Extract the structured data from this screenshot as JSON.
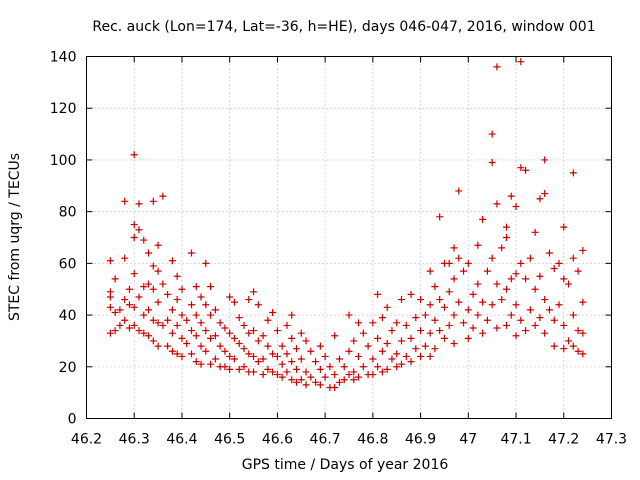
{
  "chart_data": {
    "type": "scatter",
    "title": "Rec. auck (Lon=174, Lat=-36, h=HE), days 046-047, 2016, window 001",
    "xlabel": "GPS time / Days of year 2016",
    "ylabel": "STEC from uqrg / TECUs",
    "xlim": [
      46.2,
      47.3
    ],
    "ylim": [
      0,
      140
    ],
    "xticks": [
      "46.2",
      "46.3",
      "46.4",
      "46.5",
      "46.6",
      "46.7",
      "46.8",
      "46.9",
      "47",
      "47.1",
      "47.2",
      "47.3"
    ],
    "xtick_values": [
      46.2,
      46.3,
      46.4,
      46.5,
      46.6,
      46.7,
      46.8,
      46.9,
      47.0,
      47.1,
      47.2,
      47.3
    ],
    "yticks": [
      "0",
      "20",
      "40",
      "60",
      "80",
      "100",
      "120",
      "140"
    ],
    "ytick_values": [
      0,
      20,
      40,
      60,
      80,
      100,
      120,
      140
    ],
    "grid": true,
    "marker": "+",
    "series": [
      {
        "name": "STEC",
        "color": "#cc0000",
        "points": [
          [
            46.25,
            61
          ],
          [
            46.25,
            49
          ],
          [
            46.25,
            47
          ],
          [
            46.25,
            43
          ],
          [
            46.25,
            33
          ],
          [
            46.26,
            34
          ],
          [
            46.26,
            41
          ],
          [
            46.26,
            54
          ],
          [
            46.27,
            36
          ],
          [
            46.27,
            42
          ],
          [
            46.28,
            84
          ],
          [
            46.28,
            62
          ],
          [
            46.28,
            46
          ],
          [
            46.28,
            38
          ],
          [
            46.29,
            44
          ],
          [
            46.29,
            35
          ],
          [
            46.29,
            50
          ],
          [
            46.3,
            102
          ],
          [
            46.3,
            75
          ],
          [
            46.3,
            70
          ],
          [
            46.3,
            56
          ],
          [
            46.3,
            43
          ],
          [
            46.3,
            36
          ],
          [
            46.31,
            83
          ],
          [
            46.31,
            73
          ],
          [
            46.31,
            47
          ],
          [
            46.31,
            34
          ],
          [
            46.32,
            69
          ],
          [
            46.32,
            51
          ],
          [
            46.32,
            40
          ],
          [
            46.32,
            33
          ],
          [
            46.33,
            64
          ],
          [
            46.33,
            52
          ],
          [
            46.33,
            42
          ],
          [
            46.33,
            32
          ],
          [
            46.34,
            84
          ],
          [
            46.34,
            59
          ],
          [
            46.34,
            50
          ],
          [
            46.34,
            38
          ],
          [
            46.34,
            30
          ],
          [
            46.35,
            67
          ],
          [
            46.35,
            57
          ],
          [
            46.35,
            45
          ],
          [
            46.35,
            37
          ],
          [
            46.35,
            28
          ],
          [
            46.36,
            86
          ],
          [
            46.36,
            52
          ],
          [
            46.36,
            36
          ],
          [
            46.37,
            48
          ],
          [
            46.37,
            38
          ],
          [
            46.37,
            28
          ],
          [
            46.38,
            61
          ],
          [
            46.38,
            42
          ],
          [
            46.38,
            33
          ],
          [
            46.38,
            26
          ],
          [
            46.39,
            55
          ],
          [
            46.39,
            46
          ],
          [
            46.39,
            36
          ],
          [
            46.39,
            25
          ],
          [
            46.4,
            50
          ],
          [
            46.4,
            40
          ],
          [
            46.4,
            31
          ],
          [
            46.4,
            24
          ],
          [
            46.41,
            38
          ],
          [
            46.41,
            29
          ],
          [
            46.42,
            64
          ],
          [
            46.42,
            44
          ],
          [
            46.42,
            34
          ],
          [
            46.42,
            25
          ],
          [
            46.43,
            51
          ],
          [
            46.43,
            40
          ],
          [
            46.43,
            32
          ],
          [
            46.43,
            22
          ],
          [
            46.44,
            47
          ],
          [
            46.44,
            37
          ],
          [
            46.44,
            28
          ],
          [
            46.44,
            21
          ],
          [
            46.45,
            60
          ],
          [
            46.45,
            44
          ],
          [
            46.45,
            34
          ],
          [
            46.45,
            26
          ],
          [
            46.46,
            51
          ],
          [
            46.46,
            40
          ],
          [
            46.46,
            31
          ],
          [
            46.46,
            21
          ],
          [
            46.47,
            42
          ],
          [
            46.47,
            32
          ],
          [
            46.47,
            23
          ],
          [
            46.48,
            37
          ],
          [
            46.48,
            28
          ],
          [
            46.48,
            20
          ],
          [
            46.49,
            35
          ],
          [
            46.49,
            26
          ],
          [
            46.49,
            20
          ],
          [
            46.5,
            47
          ],
          [
            46.5,
            33
          ],
          [
            46.5,
            24
          ],
          [
            46.5,
            19
          ],
          [
            46.51,
            45
          ],
          [
            46.51,
            31
          ],
          [
            46.51,
            23
          ],
          [
            46.52,
            39
          ],
          [
            46.52,
            29
          ],
          [
            46.52,
            19
          ],
          [
            46.53,
            36
          ],
          [
            46.53,
            27
          ],
          [
            46.53,
            20
          ],
          [
            46.54,
            46
          ],
          [
            46.54,
            33
          ],
          [
            46.54,
            25
          ],
          [
            46.54,
            18
          ],
          [
            46.55,
            49
          ],
          [
            46.55,
            34
          ],
          [
            46.55,
            24
          ],
          [
            46.55,
            18
          ],
          [
            46.56,
            44
          ],
          [
            46.56,
            30
          ],
          [
            46.56,
            22
          ],
          [
            46.57,
            32
          ],
          [
            46.57,
            23
          ],
          [
            46.57,
            17
          ],
          [
            46.58,
            38
          ],
          [
            46.58,
            28
          ],
          [
            46.58,
            19
          ],
          [
            46.59,
            41
          ],
          [
            46.59,
            25
          ],
          [
            46.59,
            18
          ],
          [
            46.6,
            34
          ],
          [
            46.6,
            24
          ],
          [
            46.6,
            17
          ],
          [
            46.61,
            28
          ],
          [
            46.61,
            21
          ],
          [
            46.61,
            16
          ],
          [
            46.62,
            36
          ],
          [
            46.62,
            25
          ],
          [
            46.62,
            18
          ],
          [
            46.63,
            40
          ],
          [
            46.63,
            31
          ],
          [
            46.63,
            22
          ],
          [
            46.63,
            15
          ],
          [
            46.64,
            27
          ],
          [
            46.64,
            19
          ],
          [
            46.64,
            14
          ],
          [
            46.65,
            33
          ],
          [
            46.65,
            23
          ],
          [
            46.65,
            15
          ],
          [
            46.66,
            30
          ],
          [
            46.66,
            18
          ],
          [
            46.66,
            13
          ],
          [
            46.67,
            26
          ],
          [
            46.67,
            16
          ],
          [
            46.68,
            22
          ],
          [
            46.68,
            14
          ],
          [
            46.69,
            28
          ],
          [
            46.69,
            19
          ],
          [
            46.69,
            13
          ],
          [
            46.7,
            24
          ],
          [
            46.7,
            16
          ],
          [
            46.71,
            20
          ],
          [
            46.71,
            12
          ],
          [
            46.72,
            32
          ],
          [
            46.72,
            17
          ],
          [
            46.72,
            12
          ],
          [
            46.73,
            23
          ],
          [
            46.73,
            14
          ],
          [
            46.74,
            20
          ],
          [
            46.74,
            15
          ],
          [
            46.75,
            40
          ],
          [
            46.75,
            26
          ],
          [
            46.75,
            17
          ],
          [
            46.76,
            30
          ],
          [
            46.76,
            18
          ],
          [
            46.76,
            15
          ],
          [
            46.77,
            37
          ],
          [
            46.77,
            24
          ],
          [
            46.77,
            16
          ],
          [
            46.78,
            33
          ],
          [
            46.78,
            20
          ],
          [
            46.79,
            28
          ],
          [
            46.79,
            17
          ],
          [
            46.8,
            37
          ],
          [
            46.8,
            23
          ],
          [
            46.8,
            17
          ],
          [
            46.81,
            48
          ],
          [
            46.81,
            31
          ],
          [
            46.81,
            20
          ],
          [
            46.82,
            39
          ],
          [
            46.82,
            26
          ],
          [
            46.82,
            18
          ],
          [
            46.83,
            43
          ],
          [
            46.83,
            29
          ],
          [
            46.83,
            19
          ],
          [
            46.84,
            34
          ],
          [
            46.84,
            23
          ],
          [
            46.85,
            37
          ],
          [
            46.85,
            25
          ],
          [
            46.85,
            20
          ],
          [
            46.86,
            46
          ],
          [
            46.86,
            30
          ],
          [
            46.86,
            21
          ],
          [
            46.87,
            36
          ],
          [
            46.87,
            24
          ],
          [
            46.88,
            48
          ],
          [
            46.88,
            31
          ],
          [
            46.88,
            22
          ],
          [
            46.89,
            39
          ],
          [
            46.89,
            27
          ],
          [
            46.9,
            46
          ],
          [
            46.9,
            34
          ],
          [
            46.9,
            24
          ],
          [
            46.91,
            40
          ],
          [
            46.91,
            28
          ],
          [
            46.92,
            57
          ],
          [
            46.92,
            44
          ],
          [
            46.92,
            33
          ],
          [
            46.92,
            24
          ],
          [
            46.93,
            51
          ],
          [
            46.93,
            38
          ],
          [
            46.93,
            27
          ],
          [
            46.94,
            78
          ],
          [
            46.94,
            46
          ],
          [
            46.94,
            34
          ],
          [
            46.95,
            60
          ],
          [
            46.95,
            43
          ],
          [
            46.95,
            31
          ],
          [
            46.96,
            60
          ],
          [
            46.96,
            49
          ],
          [
            46.96,
            36
          ],
          [
            46.97,
            66
          ],
          [
            46.97,
            54
          ],
          [
            46.97,
            40
          ],
          [
            46.97,
            29
          ],
          [
            46.98,
            88
          ],
          [
            46.98,
            62
          ],
          [
            46.98,
            45
          ],
          [
            46.99,
            57
          ],
          [
            46.99,
            37
          ],
          [
            47.0,
            60
          ],
          [
            47.0,
            42
          ],
          [
            47.0,
            31
          ],
          [
            47.01,
            48
          ],
          [
            47.01,
            35
          ],
          [
            47.02,
            67
          ],
          [
            47.02,
            52
          ],
          [
            47.02,
            40
          ],
          [
            47.03,
            77
          ],
          [
            47.03,
            45
          ],
          [
            47.03,
            33
          ],
          [
            47.04,
            57
          ],
          [
            47.04,
            38
          ],
          [
            47.05,
            110
          ],
          [
            47.05,
            99
          ],
          [
            47.05,
            62
          ],
          [
            47.05,
            44
          ],
          [
            47.06,
            136
          ],
          [
            47.06,
            83
          ],
          [
            47.06,
            52
          ],
          [
            47.06,
            35
          ],
          [
            47.07,
            66
          ],
          [
            47.07,
            46
          ],
          [
            47.08,
            74
          ],
          [
            47.08,
            70
          ],
          [
            47.08,
            50
          ],
          [
            47.08,
            36
          ],
          [
            47.09,
            86
          ],
          [
            47.09,
            54
          ],
          [
            47.09,
            40
          ],
          [
            47.1,
            82
          ],
          [
            47.1,
            56
          ],
          [
            47.1,
            44
          ],
          [
            47.1,
            32
          ],
          [
            47.11,
            138
          ],
          [
            47.11,
            97
          ],
          [
            47.11,
            60
          ],
          [
            47.11,
            38
          ],
          [
            47.12,
            96
          ],
          [
            47.12,
            54
          ],
          [
            47.12,
            34
          ],
          [
            47.13,
            62
          ],
          [
            47.13,
            42
          ],
          [
            47.14,
            72
          ],
          [
            47.14,
            50
          ],
          [
            47.14,
            36
          ],
          [
            47.15,
            85
          ],
          [
            47.15,
            55
          ],
          [
            47.15,
            39
          ],
          [
            47.16,
            87
          ],
          [
            47.16,
            100
          ],
          [
            47.16,
            46
          ],
          [
            47.16,
            33
          ],
          [
            47.17,
            64
          ],
          [
            47.17,
            42
          ],
          [
            47.18,
            58
          ],
          [
            47.18,
            38
          ],
          [
            47.18,
            28
          ],
          [
            47.19,
            60
          ],
          [
            47.19,
            44
          ],
          [
            47.2,
            74
          ],
          [
            47.2,
            54
          ],
          [
            47.2,
            36
          ],
          [
            47.2,
            27
          ],
          [
            47.21,
            52
          ],
          [
            47.21,
            30
          ],
          [
            47.22,
            95
          ],
          [
            47.22,
            62
          ],
          [
            47.22,
            40
          ],
          [
            47.22,
            28
          ],
          [
            47.23,
            57
          ],
          [
            47.23,
            34
          ],
          [
            47.23,
            26
          ],
          [
            47.24,
            65
          ],
          [
            47.24,
            45
          ],
          [
            47.24,
            33
          ],
          [
            47.24,
            25
          ]
        ]
      }
    ]
  }
}
